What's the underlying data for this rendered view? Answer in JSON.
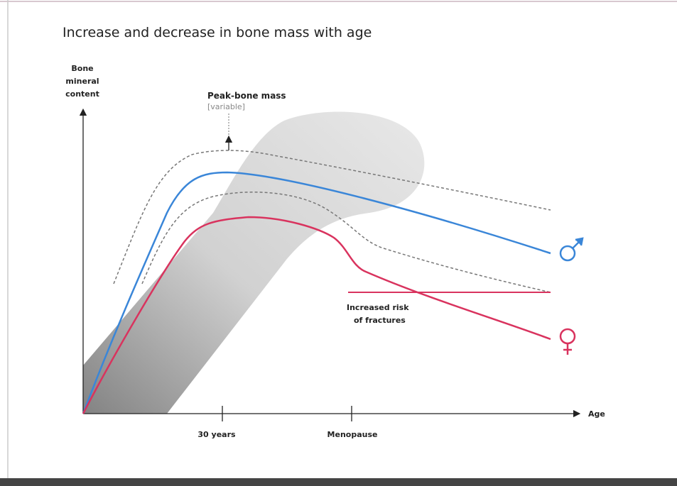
{
  "title": "Increase and decrease in bone mass with age",
  "y_axis_label": [
    "Bone",
    "mineral",
    "content"
  ],
  "x_axis_label": "Age",
  "x_markers": [
    "30 years",
    "Menopause"
  ],
  "peak_label": "Peak-bone mass",
  "peak_note": "[variable]",
  "fracture_label": [
    "Increased risk",
    "of fractures"
  ]
}
